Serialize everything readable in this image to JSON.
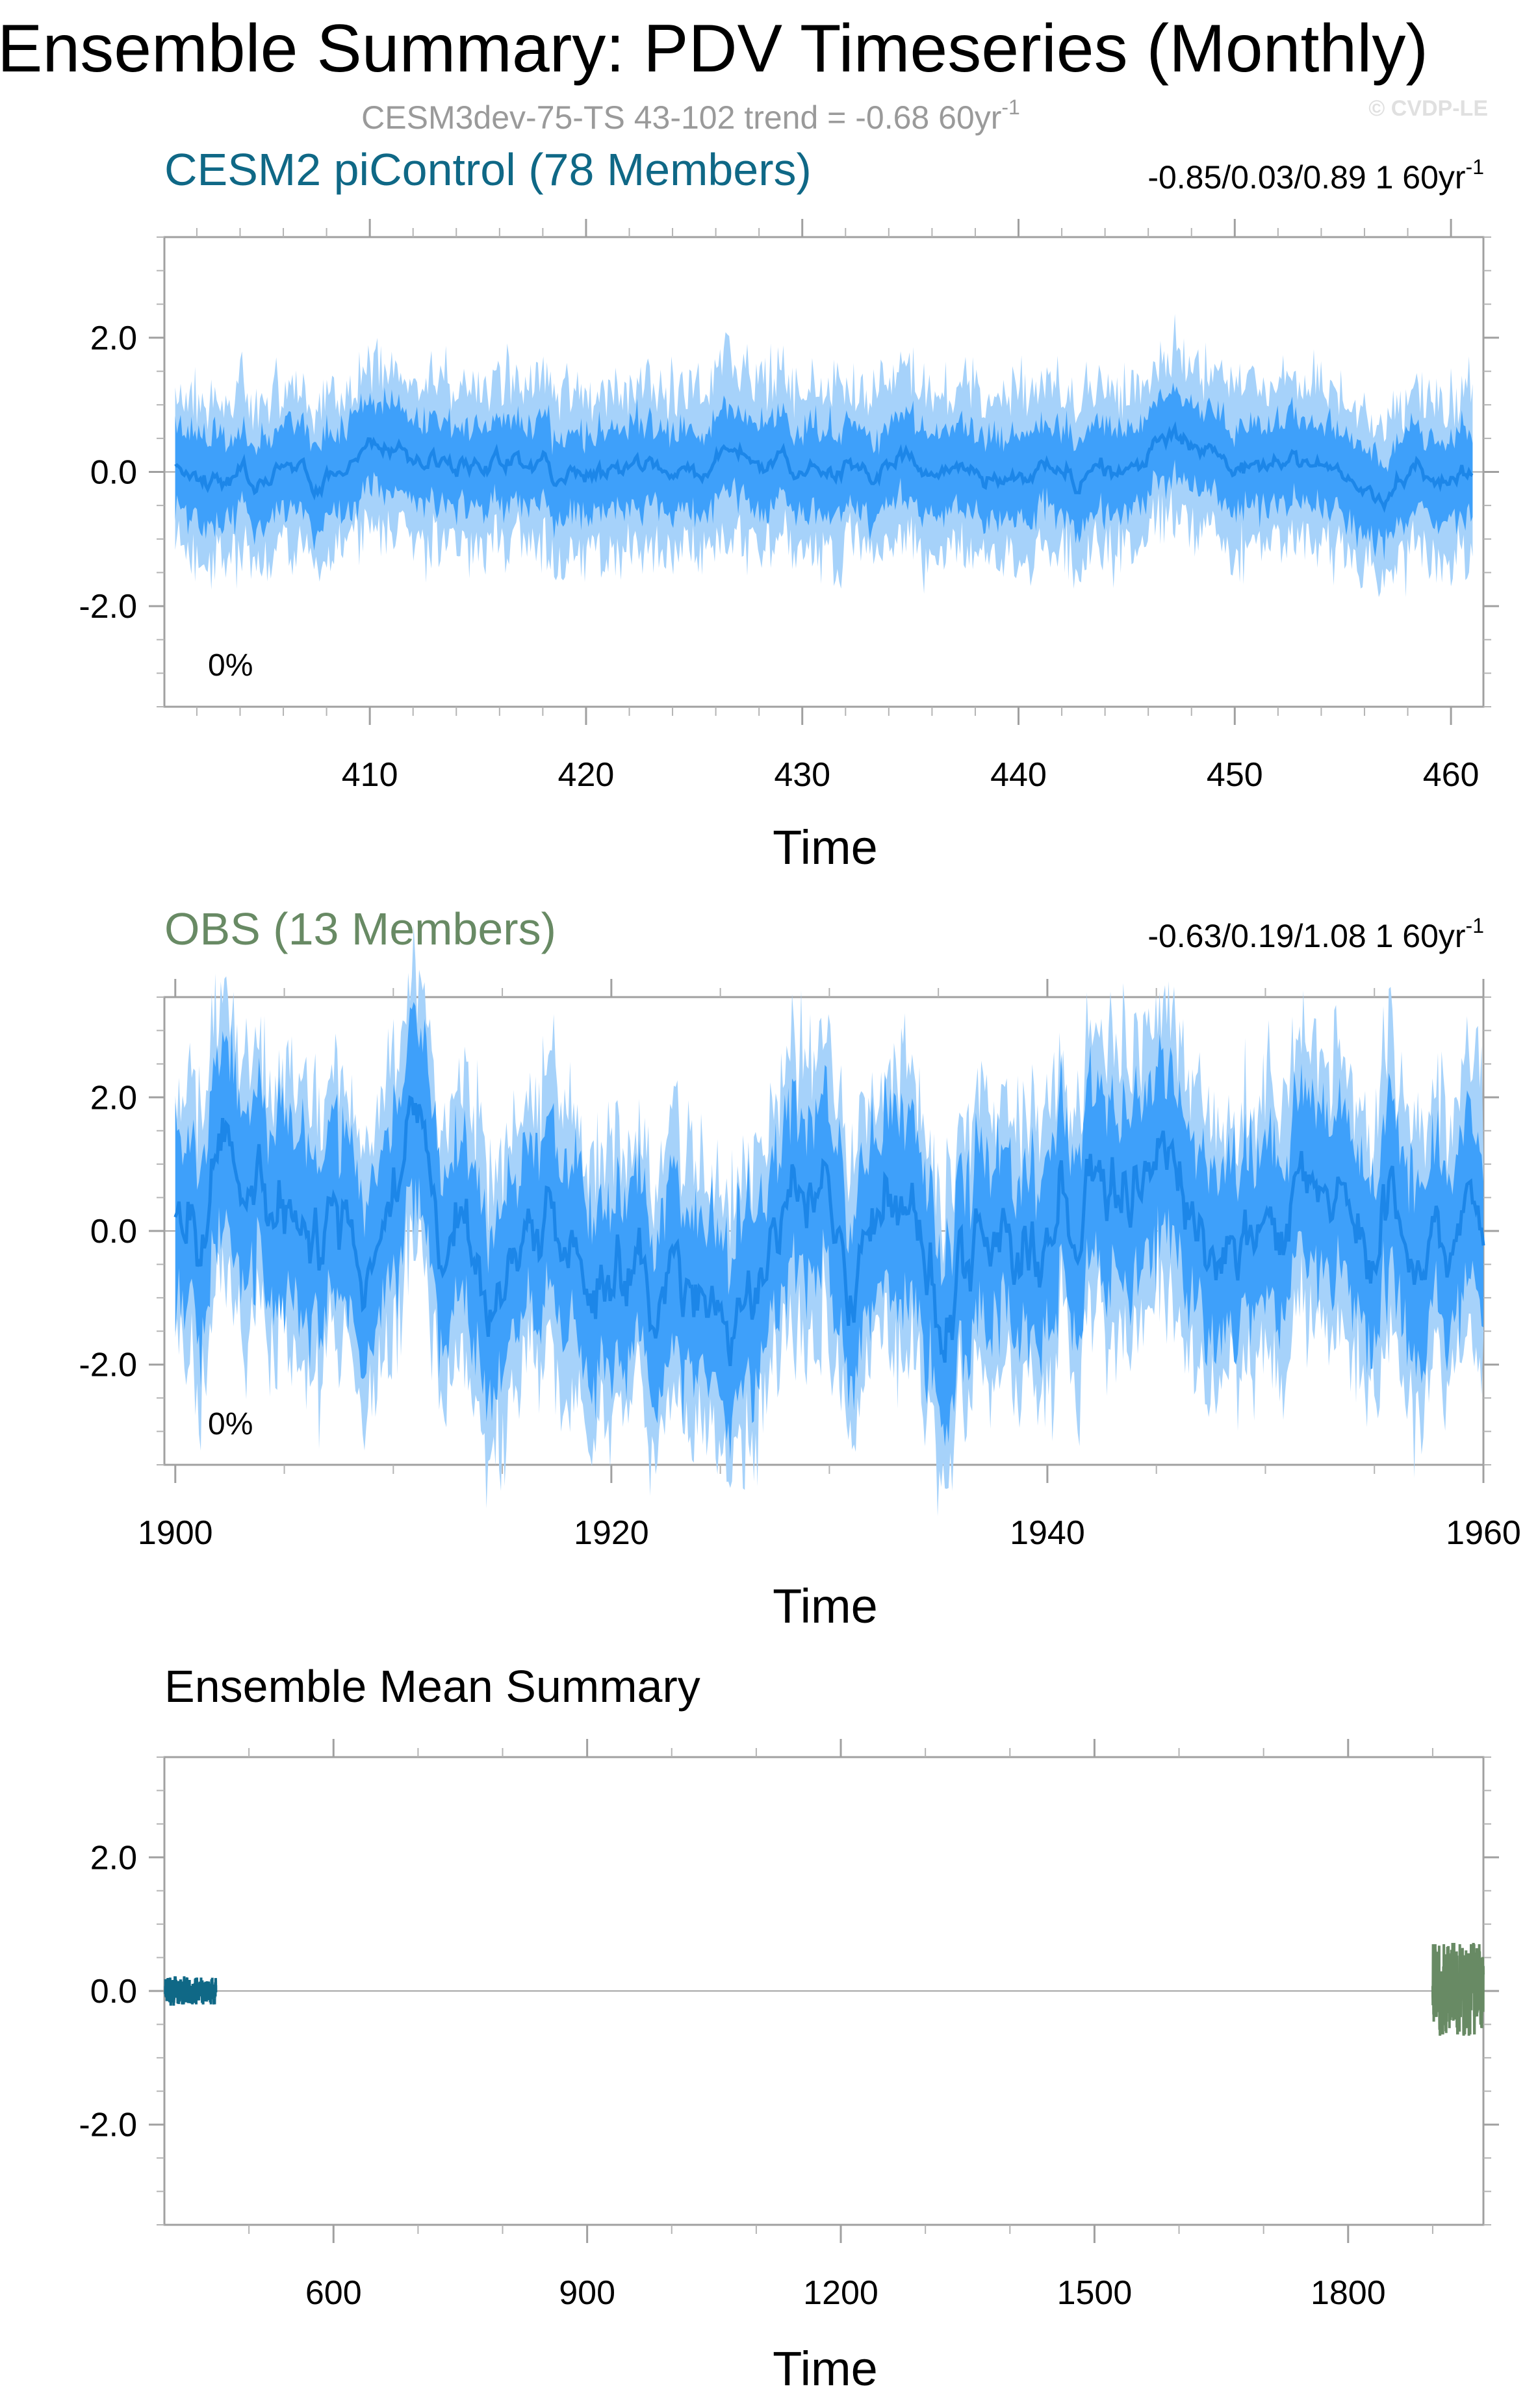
{
  "figure": {
    "title": "Ensemble Summary: PDV Timeseries (Monthly)",
    "subtitle_main": "CESM3dev-75-TS 43-102 trend = -0.68 60yr",
    "subtitle_sup": "-1",
    "copyright": "© CVDP-LE"
  },
  "colors": {
    "band_outer": "#a6d2fa",
    "band_inner": "#3ea0fa",
    "ensemble_mean_line": "#1c86e8",
    "model_title": "#0f6886",
    "obs_title": "#688a64",
    "frame": "#a0a0a0"
  },
  "chart_data": [
    {
      "type": "area",
      "title": "CESM2 piControl (78 Members)",
      "stats_main": "-0.85/0.03/0.89 1 60yr",
      "stats_sup": "-1",
      "percent_label": "0%",
      "xlabel": "Time",
      "ylabel": "",
      "xlim": [
        400.5,
        461.5
      ],
      "ylim": [
        -3.5,
        3.5
      ],
      "x_ticks": [
        410,
        420,
        430,
        440,
        450,
        460
      ],
      "x_tick_labels": [
        "410",
        "420",
        "430",
        "440",
        "450",
        "460"
      ],
      "y_ticks": [
        -2,
        0,
        2
      ],
      "y_tick_labels": [
        "-2.0",
        "0.0",
        "2.0"
      ],
      "x_range": [
        401,
        461
      ],
      "series": [
        {
          "role": "band_min_max",
          "approx_range": [
            -1.6,
            1.5
          ]
        },
        {
          "role": "band_interquartile",
          "approx_range": [
            -0.8,
            0.8
          ]
        },
        {
          "role": "ensemble_mean",
          "approx_range": [
            -0.2,
            0.2
          ]
        }
      ]
    },
    {
      "type": "area",
      "title": "OBS (13 Members)",
      "stats_main": "-0.63/0.19/1.08 1 60yr",
      "stats_sup": "-1",
      "percent_label": "0%",
      "xlabel": "Time",
      "ylabel": "",
      "xlim": [
        1899.5,
        1960.0
      ],
      "ylim": [
        -3.5,
        3.5
      ],
      "x_ticks": [
        1900,
        1920,
        1940,
        1960
      ],
      "x_tick_labels": [
        "1900",
        "1920",
        "1940",
        "1960"
      ],
      "y_ticks": [
        -2,
        0,
        2
      ],
      "y_tick_labels": [
        "-2.0",
        "0.0",
        "2.0"
      ],
      "x_range": [
        1900,
        1960
      ],
      "series": [
        {
          "role": "band_min_max",
          "approx_range": [
            -2.8,
            2.4
          ]
        },
        {
          "role": "band_interquartile",
          "approx_range": [
            -1.6,
            1.6
          ]
        },
        {
          "role": "ensemble_mean",
          "approx_range": [
            -0.7,
            0.8
          ]
        }
      ]
    },
    {
      "type": "line",
      "title": "Ensemble Mean Summary",
      "xlabel": "Time",
      "ylabel": "",
      "xlim": [
        400,
        1960
      ],
      "ylim": [
        -3.5,
        3.5
      ],
      "x_ticks": [
        600,
        900,
        1200,
        1500,
        1800
      ],
      "x_tick_labels": [
        "600",
        "900",
        "1200",
        "1500",
        "1800"
      ],
      "y_ticks": [
        -2,
        0,
        2
      ],
      "y_tick_labels": [
        "-2.0",
        "0.0",
        "2.0"
      ],
      "series": [
        {
          "color": "#0f6886",
          "x_range": [
            401,
            461
          ],
          "approx_range": [
            -0.2,
            0.2
          ]
        },
        {
          "color": "#688a64",
          "x_range": [
            1900,
            1960
          ],
          "approx_range": [
            -0.65,
            0.7
          ]
        }
      ]
    }
  ]
}
